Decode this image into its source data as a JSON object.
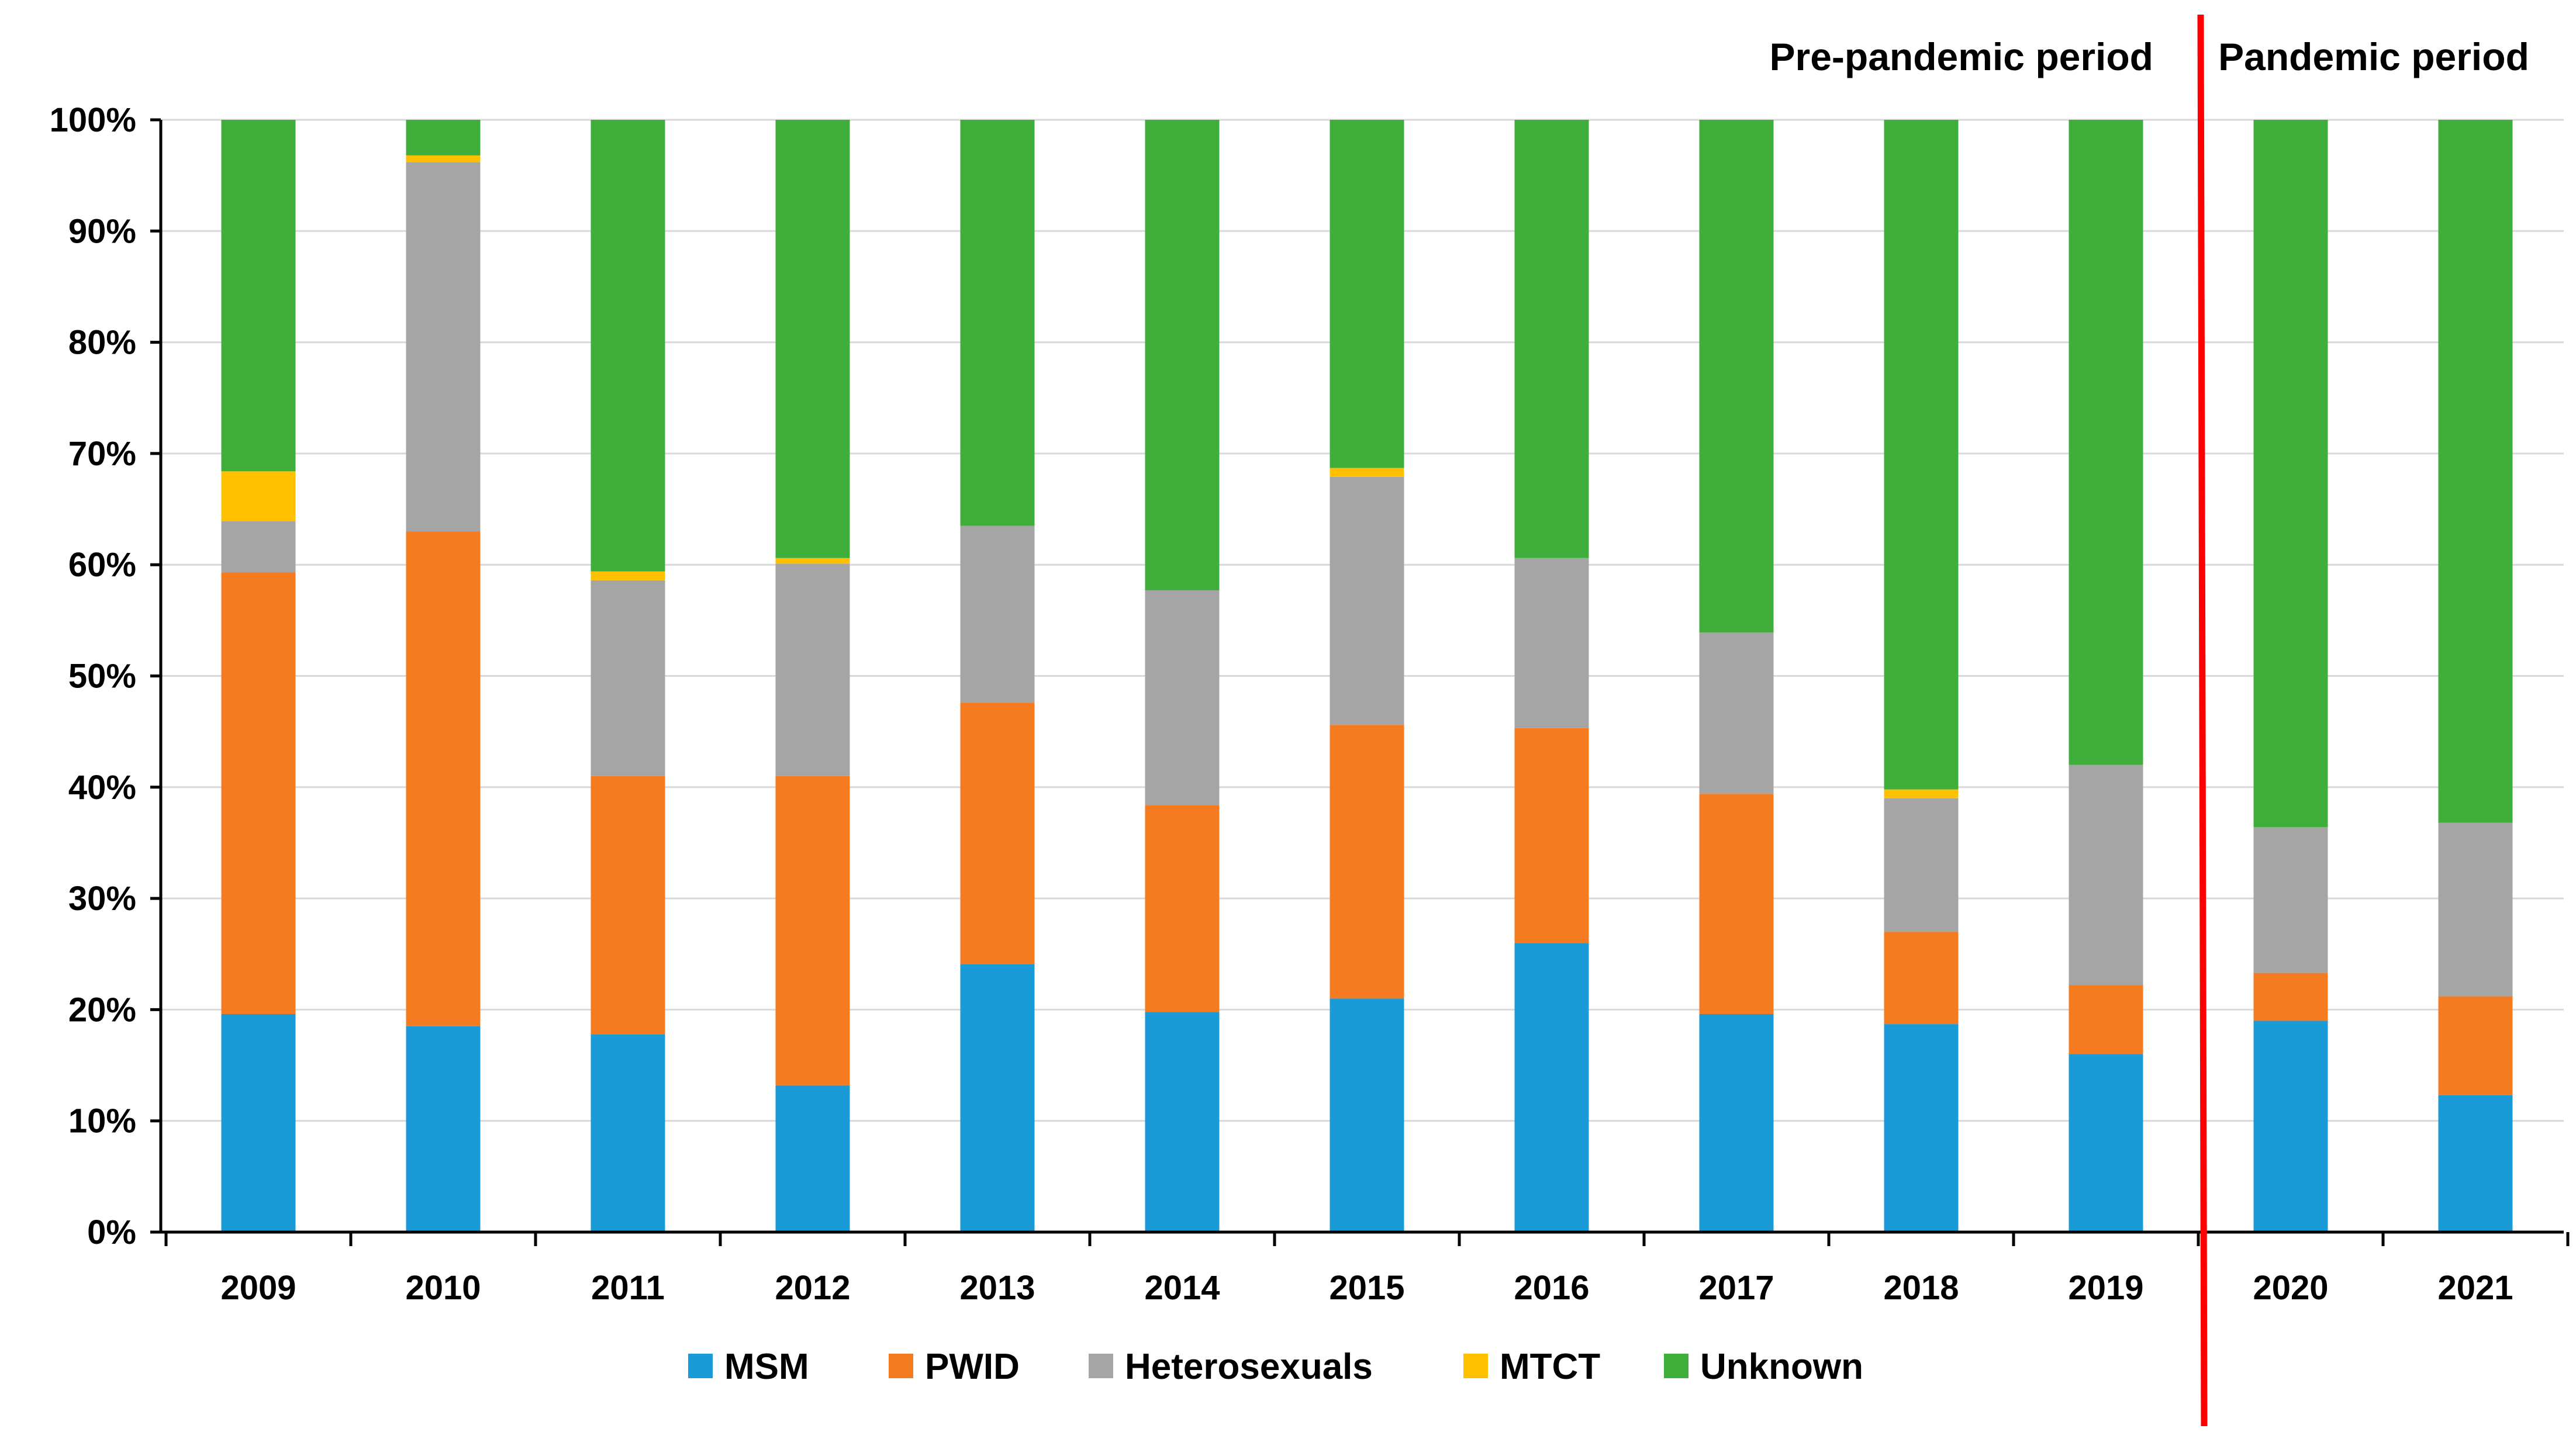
{
  "chart_data": {
    "type": "bar",
    "stacked": true,
    "categories": [
      "2009",
      "2010",
      "2011",
      "2012",
      "2013",
      "2014",
      "2015",
      "2016",
      "2017",
      "2018",
      "2019",
      "2020",
      "2021"
    ],
    "series": [
      {
        "name": "MSM",
        "color": "#1a9bd7",
        "values": [
          19.6,
          18.5,
          17.8,
          13.2,
          24.1,
          19.8,
          21.0,
          26.0,
          19.6,
          18.7,
          16.0,
          19.0,
          12.3
        ]
      },
      {
        "name": "PWID",
        "color": "#f47b20",
        "values": [
          39.7,
          44.5,
          23.2,
          27.8,
          23.5,
          18.6,
          24.6,
          19.3,
          19.8,
          8.3,
          6.2,
          4.3,
          8.9
        ]
      },
      {
        "name": "Heterosexuals",
        "color": "#a5a5a5",
        "values": [
          4.6,
          33.2,
          17.6,
          19.1,
          15.9,
          19.3,
          22.3,
          15.3,
          14.5,
          12.0,
          19.8,
          13.1,
          15.6
        ]
      },
      {
        "name": "MTCT",
        "color": "#ffc000",
        "values": [
          4.5,
          0.6,
          0.8,
          0.5,
          0,
          0,
          0.8,
          0,
          0,
          0.8,
          0,
          0,
          0
        ]
      },
      {
        "name": "Unknown",
        "color": "#3fae3a",
        "values": [
          31.6,
          3.2,
          40.6,
          39.4,
          36.5,
          42.3,
          31.3,
          39.4,
          46.1,
          60.2,
          58.0,
          63.6,
          63.2
        ]
      }
    ],
    "yticks": [
      "0%",
      "10%",
      "20%",
      "30%",
      "40%",
      "50%",
      "60%",
      "70%",
      "80%",
      "90%",
      "100%"
    ],
    "ylim": [
      0,
      100
    ],
    "grid": true,
    "legend_position": "bottom",
    "period_labels": {
      "pre": "Pre-pandemic period",
      "post": "Pandemic period"
    },
    "divider_between": [
      "2019",
      "2020"
    ],
    "divider_color": "#ff0000"
  }
}
